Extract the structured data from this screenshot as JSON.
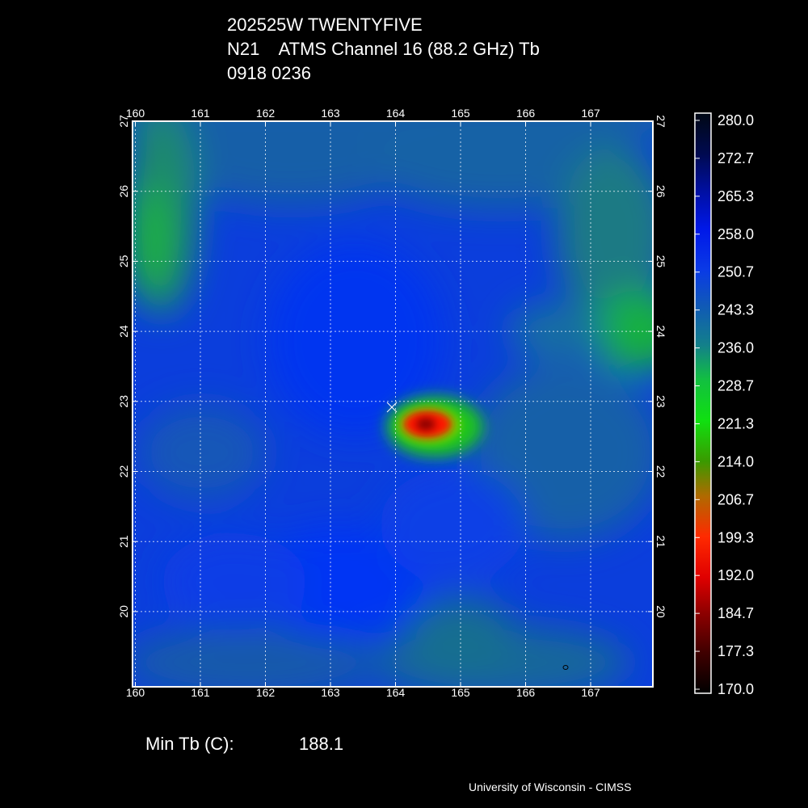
{
  "header": {
    "line1": "202525W TWENTYFIVE",
    "line2": "N21    ATMS Channel 16 (88.2 GHz) Tb",
    "line3": "0918 0236"
  },
  "chart_data": {
    "type": "heatmap",
    "title": "202525W TWENTYFIVE N21 ATMS Channel 16 (88.2 GHz) Tb",
    "x_ticks": [
      "160",
      "161",
      "162",
      "163",
      "164",
      "165",
      "166",
      "167"
    ],
    "y_ticks": [
      "27",
      "26",
      "25",
      "24",
      "23",
      "22",
      "21",
      "20"
    ],
    "xlim": [
      160,
      168
    ],
    "ylim": [
      19.1,
      27.0
    ],
    "grid": true,
    "center_marker": {
      "lon": 164.0,
      "lat": 23.05
    },
    "colorbar": {
      "ticks": [
        "280.0",
        "272.7",
        "265.3",
        "258.0",
        "250.7",
        "243.3",
        "236.0",
        "228.7",
        "221.3",
        "214.0",
        "206.7",
        "199.3",
        "192.0",
        "184.7",
        "177.3",
        "170.0"
      ],
      "min": 170.0,
      "max": 280.0
    },
    "features": [
      {
        "name": "cold core",
        "lon": 164.5,
        "lat": 22.8,
        "value": 188.1
      }
    ]
  },
  "footer": {
    "min_label": "Min Tb (C):",
    "min_value": "188.1",
    "credit": "University of Wisconsin - CIMSS"
  },
  "colors": {
    "background": "#000000",
    "warm_field": "#0a3fe0",
    "field_teal": "#1560a0",
    "green": "#19c61e",
    "core_red": "#ff1200"
  }
}
